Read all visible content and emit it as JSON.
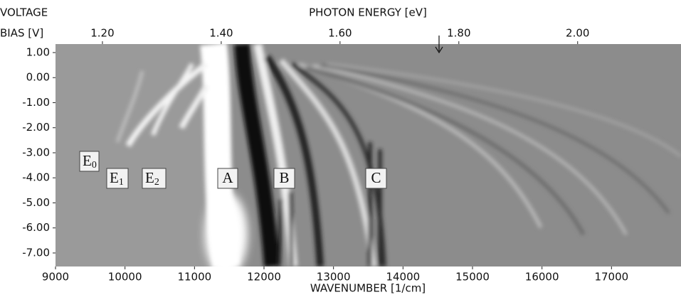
{
  "chart_data": {
    "type": "image",
    "y_label_lines": [
      "VOLTAGE",
      "BIAS [V]"
    ],
    "x2_label": "PHOTON ENERGY [eV]",
    "x_label": "WAVENUMBER [1/cm]",
    "xlim": [
      9000,
      18000
    ],
    "xticks": [
      9000,
      10000,
      11000,
      12000,
      13000,
      14000,
      15000,
      16000,
      17000
    ],
    "x2lim": [
      1.121,
      2.174
    ],
    "x2ticks": [
      {
        "value": 1.2,
        "label": "1.20"
      },
      {
        "value": 1.4,
        "label": "1.40"
      },
      {
        "value": 1.6,
        "label": "1.60"
      },
      {
        "value": 1.8,
        "label": "1.80"
      },
      {
        "value": 2.0,
        "label": "2.00"
      }
    ],
    "ylim": [
      -7.54,
      1.34
    ],
    "yticks": [
      {
        "value": 1,
        "label": "1.00"
      },
      {
        "value": 0,
        "label": "0.00"
      },
      {
        "value": -1,
        "label": "-1.00"
      },
      {
        "value": -2,
        "label": "-2.00"
      },
      {
        "value": -3,
        "label": "-3.00"
      },
      {
        "value": -4,
        "label": "-4.00"
      },
      {
        "value": -5,
        "label": "-5.00"
      },
      {
        "value": -6,
        "label": "-6.00"
      },
      {
        "value": -7,
        "label": "-7.00"
      }
    ],
    "annotations": [
      {
        "text": "E",
        "sub": "0"
      },
      {
        "text": "E",
        "sub": "1"
      },
      {
        "text": "E",
        "sub": "2"
      },
      {
        "text": "A"
      },
      {
        "text": "B"
      },
      {
        "text": "C"
      }
    ]
  }
}
